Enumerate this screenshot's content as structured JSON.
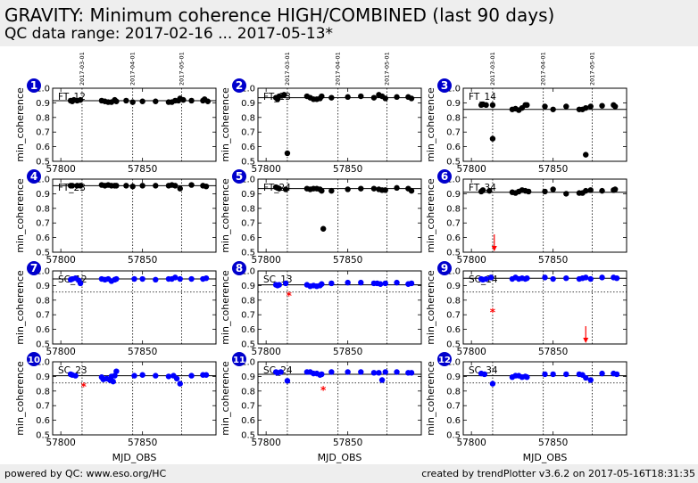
{
  "header": {
    "title": "GRAVITY: Minimum coherence HIGH/COMBINED (last 90 days)",
    "subtitle": "QC data range: 2017-02-16 ... 2017-05-13*"
  },
  "footer": {
    "left": "powered by QC: www.eso.org/HC",
    "right": "created by trendPlotter v3.6.2 on 2017-05-16T18:31:35"
  },
  "colors": {
    "ft_points": "#000000",
    "sc_points": "#0000ff",
    "outlier": "#ff0000",
    "panel_badge": "#0000cc"
  },
  "chart_data": {
    "type": "scatter",
    "x_label": "MJD_OBS",
    "y_label": "min_coherence",
    "xlim": [
      57795,
      57895
    ],
    "ylim": [
      0.5,
      1.0
    ],
    "x_ticks": [
      57800,
      57850
    ],
    "y_ticks": [
      "0.5",
      "0.6",
      "0.7",
      "0.8",
      "0.9",
      "1.0"
    ],
    "month_markers": [
      {
        "mjd": 57813,
        "label": "2017-03-01"
      },
      {
        "mjd": 57844,
        "label": "2017-04-01"
      },
      {
        "mjd": 57874,
        "label": "2017-05-01"
      }
    ],
    "panels": [
      {
        "num": "1",
        "label": "FT_12",
        "color": "black",
        "ref": 0.915,
        "ref2": null,
        "points": [
          [
            57806,
            0.915
          ],
          [
            57807,
            0.91
          ],
          [
            57808,
            0.92
          ],
          [
            57810,
            0.915
          ],
          [
            57812,
            0.92
          ],
          [
            57825,
            0.915
          ],
          [
            57827,
            0.91
          ],
          [
            57829,
            0.905
          ],
          [
            57831,
            0.905
          ],
          [
            57833,
            0.92
          ],
          [
            57834,
            0.91
          ],
          [
            57840,
            0.915
          ],
          [
            57844,
            0.905
          ],
          [
            57850,
            0.91
          ],
          [
            57858,
            0.91
          ],
          [
            57866,
            0.905
          ],
          [
            57868,
            0.905
          ],
          [
            57870,
            0.915
          ],
          [
            57872,
            0.915
          ],
          [
            57873,
            0.93
          ],
          [
            57875,
            0.92
          ],
          [
            57880,
            0.915
          ],
          [
            57887,
            0.915
          ],
          [
            57888,
            0.925
          ],
          [
            57890,
            0.91
          ]
        ],
        "outliers": []
      },
      {
        "num": "2",
        "label": "FT_13",
        "color": "black",
        "ref": 0.935,
        "ref2": null,
        "points": [
          [
            57806,
            0.935
          ],
          [
            57807,
            0.925
          ],
          [
            57808,
            0.945
          ],
          [
            57811,
            0.955
          ],
          [
            57825,
            0.945
          ],
          [
            57827,
            0.935
          ],
          [
            57829,
            0.925
          ],
          [
            57831,
            0.925
          ],
          [
            57833,
            0.93
          ],
          [
            57834,
            0.945
          ],
          [
            57840,
            0.935
          ],
          [
            57850,
            0.94
          ],
          [
            57858,
            0.945
          ],
          [
            57866,
            0.935
          ],
          [
            57869,
            0.955
          ],
          [
            57871,
            0.945
          ],
          [
            57873,
            0.93
          ],
          [
            57880,
            0.94
          ],
          [
            57887,
            0.94
          ],
          [
            57889,
            0.93
          ],
          [
            57813,
            0.555
          ]
        ],
        "outliers": []
      },
      {
        "num": "3",
        "label": "FT_14",
        "color": "black",
        "ref": 0.855,
        "ref2": null,
        "points": [
          [
            57806,
            0.885
          ],
          [
            57807,
            0.89
          ],
          [
            57809,
            0.885
          ],
          [
            57813,
            0.885
          ],
          [
            57825,
            0.855
          ],
          [
            57827,
            0.86
          ],
          [
            57829,
            0.85
          ],
          [
            57831,
            0.865
          ],
          [
            57833,
            0.885
          ],
          [
            57834,
            0.885
          ],
          [
            57845,
            0.875
          ],
          [
            57850,
            0.855
          ],
          [
            57858,
            0.875
          ],
          [
            57866,
            0.855
          ],
          [
            57868,
            0.855
          ],
          [
            57870,
            0.865
          ],
          [
            57873,
            0.875
          ],
          [
            57880,
            0.88
          ],
          [
            57887,
            0.885
          ],
          [
            57888,
            0.875
          ],
          [
            57813,
            0.655
          ],
          [
            57870,
            0.545
          ]
        ],
        "outliers": []
      },
      {
        "num": "4",
        "label": "FT_23",
        "color": "black",
        "ref": 0.955,
        "ref2": null,
        "points": [
          [
            57806,
            0.955
          ],
          [
            57807,
            0.955
          ],
          [
            57810,
            0.955
          ],
          [
            57812,
            0.955
          ],
          [
            57825,
            0.96
          ],
          [
            57827,
            0.955
          ],
          [
            57829,
            0.96
          ],
          [
            57831,
            0.955
          ],
          [
            57833,
            0.955
          ],
          [
            57834,
            0.955
          ],
          [
            57840,
            0.955
          ],
          [
            57844,
            0.95
          ],
          [
            57850,
            0.955
          ],
          [
            57858,
            0.955
          ],
          [
            57866,
            0.955
          ],
          [
            57868,
            0.96
          ],
          [
            57870,
            0.955
          ],
          [
            57873,
            0.935
          ],
          [
            57880,
            0.96
          ],
          [
            57887,
            0.955
          ],
          [
            57889,
            0.95
          ]
        ],
        "outliers": []
      },
      {
        "num": "5",
        "label": "FT_24",
        "color": "black",
        "ref": 0.935,
        "ref2": null,
        "points": [
          [
            57806,
            0.945
          ],
          [
            57807,
            0.94
          ],
          [
            57808,
            0.935
          ],
          [
            57812,
            0.93
          ],
          [
            57825,
            0.935
          ],
          [
            57827,
            0.93
          ],
          [
            57829,
            0.935
          ],
          [
            57831,
            0.935
          ],
          [
            57833,
            0.93
          ],
          [
            57834,
            0.92
          ],
          [
            57840,
            0.92
          ],
          [
            57850,
            0.93
          ],
          [
            57858,
            0.935
          ],
          [
            57866,
            0.935
          ],
          [
            57869,
            0.93
          ],
          [
            57871,
            0.925
          ],
          [
            57873,
            0.925
          ],
          [
            57880,
            0.94
          ],
          [
            57887,
            0.935
          ],
          [
            57889,
            0.92
          ],
          [
            57835,
            0.66
          ]
        ],
        "outliers": []
      },
      {
        "num": "6",
        "label": "FT_34",
        "color": "black",
        "ref": 0.91,
        "ref2": null,
        "points": [
          [
            57806,
            0.915
          ],
          [
            57807,
            0.925
          ],
          [
            57811,
            0.92
          ],
          [
            57825,
            0.91
          ],
          [
            57827,
            0.905
          ],
          [
            57829,
            0.915
          ],
          [
            57831,
            0.925
          ],
          [
            57833,
            0.92
          ],
          [
            57835,
            0.915
          ],
          [
            57845,
            0.915
          ],
          [
            57850,
            0.93
          ],
          [
            57858,
            0.9
          ],
          [
            57866,
            0.905
          ],
          [
            57868,
            0.905
          ],
          [
            57870,
            0.92
          ],
          [
            57873,
            0.925
          ],
          [
            57880,
            0.92
          ],
          [
            57887,
            0.925
          ],
          [
            57888,
            0.93
          ]
        ],
        "outliers": [],
        "arrows": [
          {
            "x": 57814,
            "dir": "down"
          }
        ]
      },
      {
        "num": "7",
        "label": "SC_12",
        "color": "blue",
        "ref": 0.945,
        "ref2": 0.855,
        "points": [
          [
            57806,
            0.94
          ],
          [
            57807,
            0.945
          ],
          [
            57809,
            0.95
          ],
          [
            57811,
            0.935
          ],
          [
            57812,
            0.915
          ],
          [
            57825,
            0.945
          ],
          [
            57827,
            0.94
          ],
          [
            57829,
            0.945
          ],
          [
            57831,
            0.93
          ],
          [
            57833,
            0.94
          ],
          [
            57834,
            0.945
          ],
          [
            57845,
            0.945
          ],
          [
            57850,
            0.945
          ],
          [
            57858,
            0.94
          ],
          [
            57866,
            0.945
          ],
          [
            57868,
            0.945
          ],
          [
            57870,
            0.955
          ],
          [
            57873,
            0.945
          ],
          [
            57880,
            0.945
          ],
          [
            57887,
            0.945
          ],
          [
            57889,
            0.95
          ]
        ],
        "outliers": []
      },
      {
        "num": "8",
        "label": "SC_13",
        "color": "blue",
        "ref": 0.905,
        "ref2": 0.855,
        "points": [
          [
            57806,
            0.905
          ],
          [
            57807,
            0.9
          ],
          [
            57808,
            0.905
          ],
          [
            57812,
            0.915
          ],
          [
            57825,
            0.905
          ],
          [
            57827,
            0.895
          ],
          [
            57829,
            0.9
          ],
          [
            57831,
            0.895
          ],
          [
            57833,
            0.9
          ],
          [
            57834,
            0.91
          ],
          [
            57840,
            0.915
          ],
          [
            57850,
            0.92
          ],
          [
            57858,
            0.92
          ],
          [
            57866,
            0.915
          ],
          [
            57868,
            0.915
          ],
          [
            57870,
            0.91
          ],
          [
            57873,
            0.915
          ],
          [
            57880,
            0.92
          ],
          [
            57887,
            0.91
          ],
          [
            57889,
            0.915
          ]
        ],
        "outliers": [
          [
            57814,
            0.83
          ]
        ]
      },
      {
        "num": "9",
        "label": "SC_14",
        "color": "blue",
        "ref": 0.95,
        "ref2": 0.855,
        "points": [
          [
            57806,
            0.945
          ],
          [
            57807,
            0.94
          ],
          [
            57809,
            0.945
          ],
          [
            57812,
            0.955
          ],
          [
            57825,
            0.945
          ],
          [
            57827,
            0.955
          ],
          [
            57829,
            0.945
          ],
          [
            57831,
            0.95
          ],
          [
            57833,
            0.945
          ],
          [
            57834,
            0.95
          ],
          [
            57845,
            0.955
          ],
          [
            57850,
            0.945
          ],
          [
            57858,
            0.95
          ],
          [
            57866,
            0.945
          ],
          [
            57868,
            0.95
          ],
          [
            57870,
            0.955
          ],
          [
            57873,
            0.945
          ],
          [
            57880,
            0.955
          ],
          [
            57887,
            0.955
          ],
          [
            57889,
            0.95
          ]
        ],
        "outliers": [
          [
            57813,
            0.715
          ]
        ],
        "arrows": [
          {
            "x": 57870,
            "dir": "down"
          }
        ]
      },
      {
        "num": "10",
        "label": "SC_23",
        "color": "blue",
        "ref": 0.905,
        "ref2": 0.855,
        "points": [
          [
            57806,
            0.915
          ],
          [
            57807,
            0.91
          ],
          [
            57809,
            0.905
          ],
          [
            57825,
            0.895
          ],
          [
            57826,
            0.88
          ],
          [
            57828,
            0.885
          ],
          [
            57830,
            0.875
          ],
          [
            57831,
            0.9
          ],
          [
            57832,
            0.865
          ],
          [
            57833,
            0.905
          ],
          [
            57834,
            0.935
          ],
          [
            57845,
            0.905
          ],
          [
            57850,
            0.91
          ],
          [
            57858,
            0.905
          ],
          [
            57866,
            0.9
          ],
          [
            57869,
            0.905
          ],
          [
            57871,
            0.885
          ],
          [
            57873,
            0.85
          ],
          [
            57880,
            0.905
          ],
          [
            57887,
            0.91
          ],
          [
            57889,
            0.91
          ]
        ],
        "outliers": [
          [
            57814,
            0.83
          ]
        ]
      },
      {
        "num": "11",
        "label": "SC_24",
        "color": "blue",
        "ref": 0.915,
        "ref2": 0.855,
        "points": [
          [
            57806,
            0.93
          ],
          [
            57807,
            0.925
          ],
          [
            57809,
            0.93
          ],
          [
            57813,
            0.87
          ],
          [
            57825,
            0.93
          ],
          [
            57827,
            0.93
          ],
          [
            57829,
            0.92
          ],
          [
            57831,
            0.92
          ],
          [
            57833,
            0.91
          ],
          [
            57834,
            0.915
          ],
          [
            57840,
            0.93
          ],
          [
            57850,
            0.93
          ],
          [
            57858,
            0.93
          ],
          [
            57866,
            0.925
          ],
          [
            57869,
            0.925
          ],
          [
            57871,
            0.875
          ],
          [
            57873,
            0.93
          ],
          [
            57880,
            0.93
          ],
          [
            57887,
            0.925
          ],
          [
            57889,
            0.925
          ]
        ],
        "outliers": [
          [
            57835,
            0.805
          ]
        ]
      },
      {
        "num": "12",
        "label": "SC_34",
        "color": "blue",
        "ref": 0.905,
        "ref2": 0.855,
        "points": [
          [
            57806,
            0.92
          ],
          [
            57808,
            0.915
          ],
          [
            57813,
            0.85
          ],
          [
            57825,
            0.895
          ],
          [
            57827,
            0.905
          ],
          [
            57829,
            0.905
          ],
          [
            57831,
            0.895
          ],
          [
            57833,
            0.9
          ],
          [
            57834,
            0.895
          ],
          [
            57845,
            0.915
          ],
          [
            57850,
            0.915
          ],
          [
            57858,
            0.915
          ],
          [
            57866,
            0.915
          ],
          [
            57868,
            0.91
          ],
          [
            57870,
            0.89
          ],
          [
            57873,
            0.875
          ],
          [
            57880,
            0.92
          ],
          [
            57887,
            0.92
          ],
          [
            57889,
            0.915
          ]
        ],
        "outliers": []
      }
    ]
  }
}
